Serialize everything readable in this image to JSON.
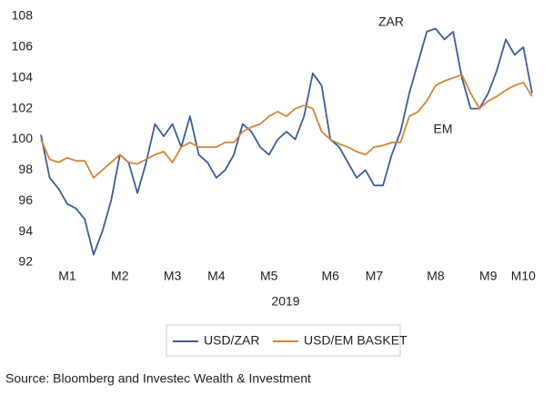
{
  "chart_data": {
    "type": "line",
    "xlabel": "2019",
    "source": "Source: Bloomberg and Investec Wealth & Investment",
    "annotations": [
      {
        "text": "ZAR"
      },
      {
        "text": "EM"
      }
    ],
    "categories": [
      null,
      null,
      null,
      "M1",
      null,
      null,
      null,
      null,
      null,
      "M2",
      null,
      null,
      null,
      null,
      null,
      "M3",
      null,
      null,
      null,
      null,
      "M4",
      null,
      null,
      null,
      null,
      null,
      "M5",
      null,
      null,
      null,
      null,
      null,
      null,
      "M6",
      null,
      null,
      null,
      null,
      "M7",
      null,
      null,
      null,
      null,
      null,
      null,
      "M8",
      null,
      null,
      null,
      null,
      null,
      "M9",
      null,
      null,
      null,
      "M10",
      null
    ],
    "series": [
      {
        "name": "USD/ZAR",
        "color": "#3d5e96",
        "values": [
          100.3,
          97.5,
          96.8,
          95.8,
          95.5,
          94.8,
          92.5,
          94,
          96,
          99,
          98.5,
          96.5,
          98.5,
          101,
          100.2,
          101,
          99.5,
          101.5,
          99,
          98.5,
          97.5,
          98,
          99,
          101,
          100.5,
          99.5,
          99,
          100,
          100.5,
          100,
          101.5,
          104.3,
          103.5,
          100,
          99.5,
          98.5,
          97.5,
          98,
          97,
          97,
          99,
          100.5,
          103,
          105,
          107,
          107.2,
          106.5,
          107,
          104,
          102,
          102,
          103,
          104.5,
          106.5,
          105.5,
          106,
          103
        ]
      },
      {
        "name": "USD/EM BASKET",
        "color": "#d4843a",
        "values": [
          100,
          98.7,
          98.5,
          98.8,
          98.6,
          98.6,
          97.5,
          98,
          98.5,
          99,
          98.5,
          98.4,
          98.7,
          99,
          99.2,
          98.5,
          99.5,
          99.8,
          99.5,
          99.5,
          99.5,
          99.8,
          99.8,
          100.5,
          100.8,
          101,
          101.5,
          101.8,
          101.5,
          102,
          102.2,
          102,
          100.5,
          100,
          99.7,
          99.5,
          99.2,
          99,
          99.5,
          99.6,
          99.8,
          99.8,
          101.5,
          101.8,
          102.5,
          103.5,
          103.8,
          104,
          104.2,
          103,
          102,
          102.5,
          102.8,
          103.2,
          103.5,
          103.7,
          102.8
        ]
      }
    ],
    "ylim": [
      92,
      108
    ],
    "yticks": [
      92,
      94,
      96,
      98,
      100,
      102,
      104,
      106,
      108
    ],
    "grid": false
  }
}
